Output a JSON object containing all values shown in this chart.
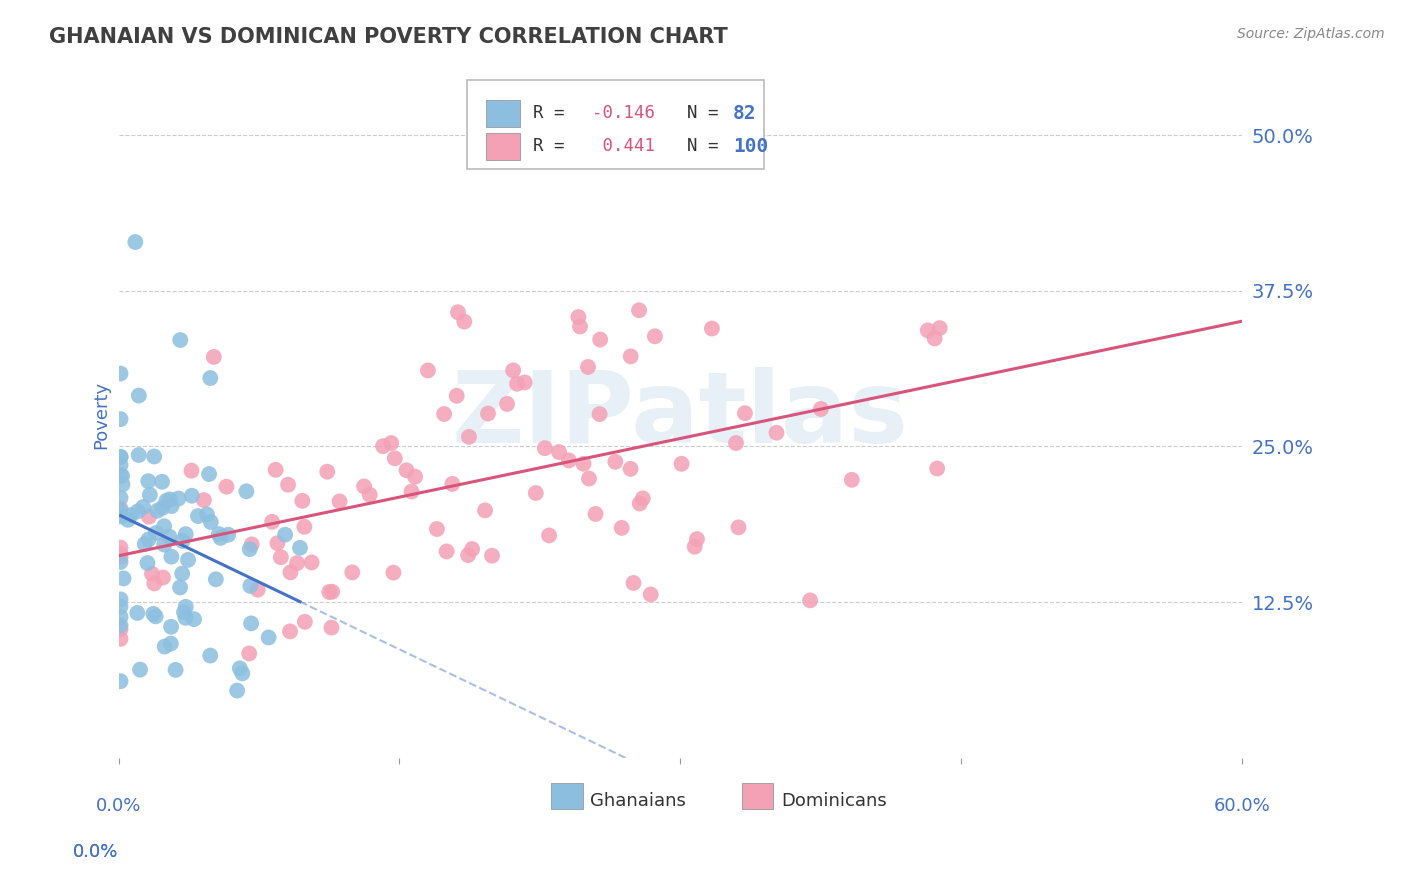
{
  "title": "GHANAIAN VS DOMINICAN POVERTY CORRELATION CHART",
  "source": "Source: ZipAtlas.com",
  "ylabel": "Poverty",
  "ytick_labels": [
    "12.5%",
    "25.0%",
    "37.5%",
    "50.0%"
  ],
  "ytick_values": [
    0.125,
    0.25,
    0.375,
    0.5
  ],
  "xlim": [
    0.0,
    0.6
  ],
  "ylim": [
    0.0,
    0.55
  ],
  "ghanaian_color": "#8cbfdf",
  "dominican_color": "#f4a0b5",
  "ghanaian_line_color": "#4472c4",
  "dominican_line_color": "#d9547a",
  "watermark": "ZIPatlas",
  "blue_label": "Ghanaians",
  "pink_label": "Dominicans",
  "title_color": "#404040",
  "axis_label_color": "#4472c4",
  "background_color": "#ffffff",
  "grid_color": "#cccccc",
  "seed": 42,
  "N_ghana": 82,
  "N_dominican": 100,
  "R_ghana": -0.146,
  "R_dominican": 0.441,
  "legend_r1_val": "-0.146",
  "legend_n1_val": "82",
  "legend_r2_val": "0.441",
  "legend_n2_val": "100"
}
